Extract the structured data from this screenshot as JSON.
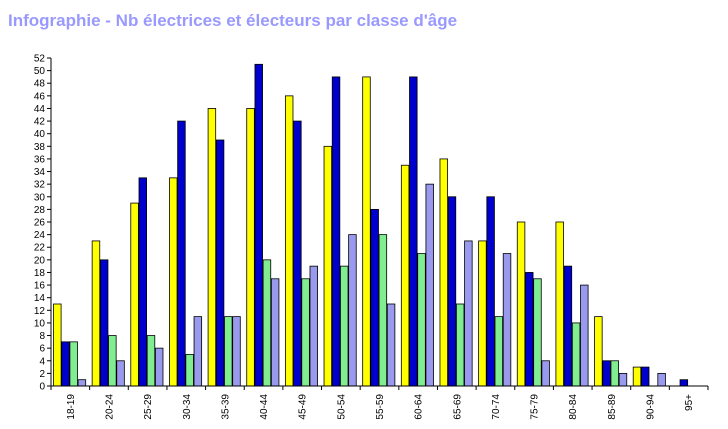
{
  "title": "Infographie - Nb électrices et électeurs par classe d'âge",
  "chart_data": {
    "type": "bar",
    "title": "Infographie - Nb électrices et électeurs par classe d'âge",
    "xlabel": "",
    "ylabel": "",
    "ylim": [
      0,
      52
    ],
    "y_ticks": [
      0,
      2,
      4,
      6,
      8,
      10,
      12,
      14,
      16,
      18,
      20,
      22,
      24,
      26,
      28,
      30,
      32,
      34,
      36,
      38,
      40,
      42,
      44,
      46,
      48,
      50,
      52
    ],
    "grid": false,
    "legend": "none",
    "categories": [
      "18-19",
      "20-24",
      "25-29",
      "30-34",
      "35-39",
      "40-44",
      "45-49",
      "50-54",
      "55-59",
      "60-64",
      "65-69",
      "70-74",
      "75-79",
      "80-84",
      "85-89",
      "90-94",
      "95+"
    ],
    "series": [
      {
        "color": "#ffff00",
        "values": [
          13,
          23,
          29,
          33,
          44,
          44,
          46,
          38,
          49,
          35,
          36,
          23,
          26,
          26,
          11,
          3,
          0
        ]
      },
      {
        "color": "#0000cc",
        "values": [
          7,
          20,
          33,
          42,
          39,
          51,
          42,
          49,
          28,
          49,
          30,
          30,
          18,
          19,
          4,
          3,
          1
        ]
      },
      {
        "color": "#80ee90",
        "values": [
          7,
          8,
          8,
          5,
          11,
          20,
          17,
          19,
          24,
          21,
          13,
          11,
          17,
          10,
          4,
          0,
          0
        ]
      },
      {
        "color": "#9999ee",
        "values": [
          1,
          4,
          6,
          11,
          11,
          17,
          19,
          24,
          13,
          32,
          23,
          21,
          4,
          16,
          2,
          2,
          0
        ]
      }
    ]
  }
}
